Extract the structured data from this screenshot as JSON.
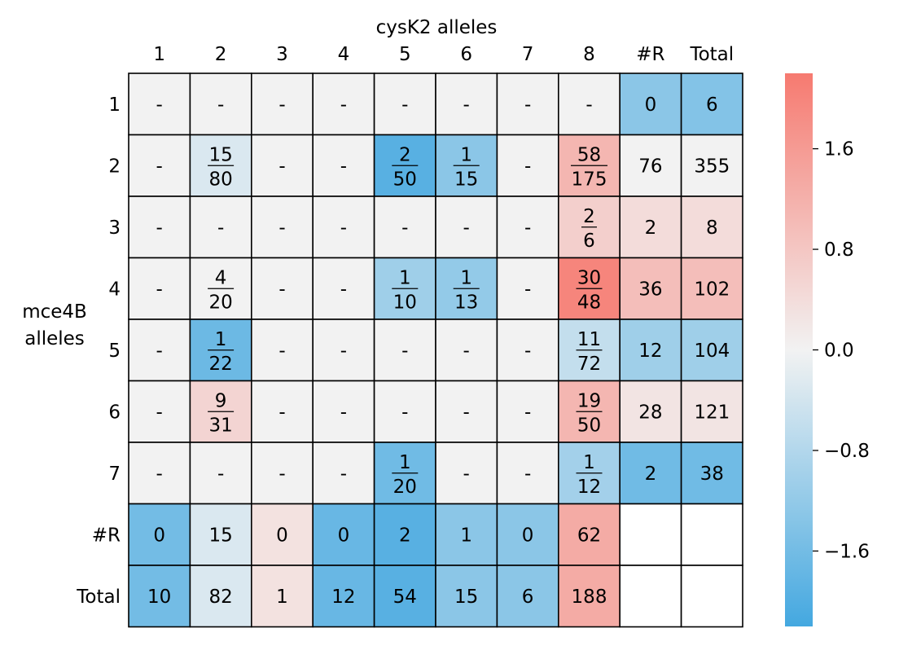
{
  "chart_data": {
    "type": "heatmap",
    "title": "",
    "xlabel": "cysK2 alleles",
    "ylabel_lines": [
      "mce4B",
      "alleles"
    ],
    "columns": [
      "1",
      "2",
      "3",
      "4",
      "5",
      "6",
      "7",
      "8",
      "#R",
      "Total"
    ],
    "rows": [
      "1",
      "2",
      "3",
      "4",
      "5",
      "6",
      "7",
      "#R",
      "Total"
    ],
    "cells": [
      [
        {
          "text": "-",
          "v": 0
        },
        {
          "text": "-",
          "v": 0
        },
        {
          "text": "-",
          "v": 0
        },
        {
          "text": "-",
          "v": 0
        },
        {
          "text": "-",
          "v": 0
        },
        {
          "text": "-",
          "v": 0
        },
        {
          "text": "-",
          "v": 0
        },
        {
          "text": "-",
          "v": 0
        },
        {
          "text": "0",
          "v": -1.3
        },
        {
          "text": "6",
          "v": -1.4
        }
      ],
      [
        {
          "text": "-",
          "v": 0
        },
        {
          "num": "15",
          "den": "80",
          "v": -0.3
        },
        {
          "text": "-",
          "v": 0
        },
        {
          "text": "-",
          "v": 0
        },
        {
          "num": "2",
          "den": "50",
          "v": -1.95
        },
        {
          "num": "1",
          "den": "15",
          "v": -1.3
        },
        {
          "text": "-",
          "v": 0
        },
        {
          "num": "58",
          "den": "175",
          "v": 1.1
        },
        {
          "text": "76",
          "v": 0
        },
        {
          "text": "355",
          "v": 0
        }
      ],
      [
        {
          "text": "-",
          "v": 0
        },
        {
          "text": "-",
          "v": 0
        },
        {
          "text": "-",
          "v": 0
        },
        {
          "text": "-",
          "v": 0
        },
        {
          "text": "-",
          "v": 0
        },
        {
          "text": "-",
          "v": 0
        },
        {
          "text": "-",
          "v": 0
        },
        {
          "num": "2",
          "den": "6",
          "v": 0.65
        },
        {
          "text": "2",
          "v": 0.4
        },
        {
          "text": "8",
          "v": 0.4
        }
      ],
      [
        {
          "text": "-",
          "v": 0
        },
        {
          "num": "4",
          "den": "20",
          "v": 0
        },
        {
          "text": "-",
          "v": 0
        },
        {
          "text": "-",
          "v": 0
        },
        {
          "num": "1",
          "den": "10",
          "v": -1.05
        },
        {
          "num": "1",
          "den": "13",
          "v": -1.2
        },
        {
          "text": "-",
          "v": 0
        },
        {
          "num": "30",
          "den": "48",
          "v": 2.0
        },
        {
          "text": "36",
          "v": 0.95
        },
        {
          "text": "102",
          "v": 0.95
        }
      ],
      [
        {
          "text": "-",
          "v": 0
        },
        {
          "num": "1",
          "den": "22",
          "v": -1.7
        },
        {
          "text": "-",
          "v": 0
        },
        {
          "text": "-",
          "v": 0
        },
        {
          "text": "-",
          "v": 0
        },
        {
          "text": "-",
          "v": 0
        },
        {
          "text": "-",
          "v": 0
        },
        {
          "num": "11",
          "den": "72",
          "v": -0.6
        },
        {
          "text": "12",
          "v": -1.05
        },
        {
          "text": "104",
          "v": -1.05
        }
      ],
      [
        {
          "text": "-",
          "v": 0
        },
        {
          "num": "9",
          "den": "31",
          "v": 0.55
        },
        {
          "text": "-",
          "v": 0
        },
        {
          "text": "-",
          "v": 0
        },
        {
          "text": "-",
          "v": 0
        },
        {
          "text": "-",
          "v": 0
        },
        {
          "text": "-",
          "v": 0
        },
        {
          "num": "19",
          "den": "50",
          "v": 1.1
        },
        {
          "text": "28",
          "v": 0.25
        },
        {
          "text": "121",
          "v": 0.25
        }
      ],
      [
        {
          "text": "-",
          "v": 0
        },
        {
          "text": "-",
          "v": 0
        },
        {
          "text": "-",
          "v": 0
        },
        {
          "text": "-",
          "v": 0
        },
        {
          "num": "1",
          "den": "20",
          "v": -1.65
        },
        {
          "text": "-",
          "v": 0
        },
        {
          "text": "-",
          "v": 0
        },
        {
          "num": "1",
          "den": "12",
          "v": -1.0
        },
        {
          "text": "2",
          "v": -1.65
        },
        {
          "text": "38",
          "v": -1.65
        }
      ],
      [
        {
          "text": "0",
          "v": -1.6
        },
        {
          "text": "15",
          "v": -0.3
        },
        {
          "text": "0",
          "v": 0.3
        },
        {
          "text": "0",
          "v": -1.75
        },
        {
          "text": "2",
          "v": -1.95
        },
        {
          "text": "1",
          "v": -1.3
        },
        {
          "text": "0",
          "v": -1.3
        },
        {
          "text": "62",
          "v": 1.3
        },
        null,
        null
      ],
      [
        {
          "text": "10",
          "v": -1.6
        },
        {
          "text": "82",
          "v": -0.3
        },
        {
          "text": "1",
          "v": 0.3
        },
        {
          "text": "12",
          "v": -1.75
        },
        {
          "text": "54",
          "v": -1.95
        },
        {
          "text": "15",
          "v": -1.3
        },
        {
          "text": "6",
          "v": -1.3
        },
        {
          "text": "188",
          "v": 1.3
        },
        null,
        null
      ]
    ],
    "colorbar": {
      "vmin": -2.2,
      "vmax": 2.2,
      "ticks": [
        1.6,
        0.8,
        0.0,
        -0.8,
        -1.6
      ],
      "tick_labels": [
        "1.6",
        "0.8",
        "0.0",
        "−0.8",
        "−1.6"
      ],
      "colors": {
        "low": "#44a8e0",
        "mid": "#f2f2f2",
        "high": "#f67a70"
      }
    }
  }
}
